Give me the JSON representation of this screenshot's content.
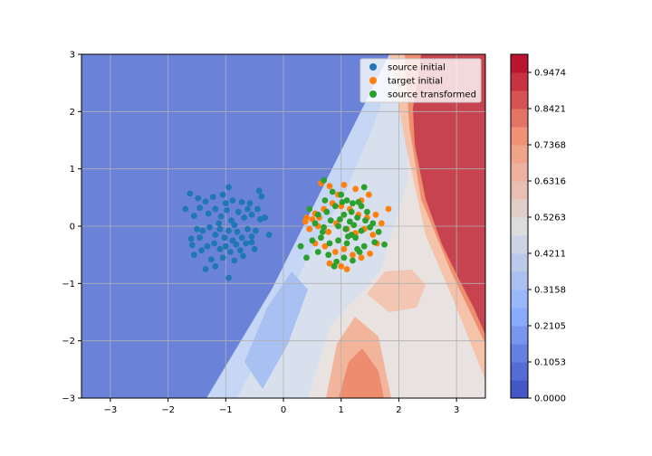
{
  "chart_data": {
    "type": "scatter",
    "title": "",
    "xlabel": "",
    "ylabel": "",
    "xlim": [
      -3.5,
      3.5
    ],
    "ylim": [
      -3,
      3
    ],
    "x_ticks": [
      "−3",
      "−2",
      "−1",
      "0",
      "1",
      "2",
      "3"
    ],
    "x_tick_values": [
      -3,
      -2,
      -1,
      0,
      1,
      2,
      3
    ],
    "y_ticks": [
      "−3",
      "−2",
      "−1",
      "0",
      "1",
      "2",
      "3"
    ],
    "y_tick_values": [
      -3,
      -2,
      -1,
      0,
      1,
      2,
      3
    ],
    "grid": true,
    "legend_position": "upper right",
    "background": "filled contour of classifier probability (coolwarm colormap), low values on the left half, high values in the upper-right region",
    "colorbar": {
      "labels": [
        "0.0000",
        "0.1053",
        "0.2105",
        "0.3158",
        "0.4211",
        "0.5263",
        "0.6316",
        "0.7368",
        "0.8421",
        "0.9474"
      ],
      "values": [
        0.0,
        0.1053,
        0.2105,
        0.3158,
        0.4211,
        0.5263,
        0.6316,
        0.7368,
        0.8421,
        0.9474
      ],
      "min": 0,
      "max": 1,
      "levels": 19,
      "colormap": "coolwarm"
    },
    "series": [
      {
        "name": "source initial",
        "color": "#1f77b4",
        "points": [
          [
            -1.62,
            0.57
          ],
          [
            -1.48,
            0.49
          ],
          [
            -1.35,
            0.43
          ],
          [
            -1.22,
            0.51
          ],
          [
            -1.05,
            0.55
          ],
          [
            -0.95,
            0.68
          ],
          [
            -0.88,
            0.45
          ],
          [
            -0.72,
            0.42
          ],
          [
            -0.58,
            0.4
          ],
          [
            -0.42,
            0.62
          ],
          [
            -0.38,
            0.52
          ],
          [
            -1.7,
            0.3
          ],
          [
            -1.55,
            0.18
          ],
          [
            -1.45,
            0.32
          ],
          [
            -1.3,
            0.22
          ],
          [
            -1.18,
            0.3
          ],
          [
            -1.08,
            0.17
          ],
          [
            -0.98,
            0.28
          ],
          [
            -0.9,
            0.1
          ],
          [
            -0.78,
            0.25
          ],
          [
            -0.68,
            0.15
          ],
          [
            -0.55,
            0.2
          ],
          [
            -0.4,
            0.12
          ],
          [
            -0.32,
            0.15
          ],
          [
            -1.6,
            -0.22
          ],
          [
            -1.5,
            -0.05
          ],
          [
            -1.4,
            -0.08
          ],
          [
            -1.28,
            -0.02
          ],
          [
            -1.18,
            -0.15
          ],
          [
            -1.1,
            -0.05
          ],
          [
            -1.02,
            -0.2
          ],
          [
            -0.95,
            -0.08
          ],
          [
            -0.88,
            -0.25
          ],
          [
            -0.8,
            -0.1
          ],
          [
            -0.72,
            -0.2
          ],
          [
            -0.62,
            -0.05
          ],
          [
            -0.55,
            -0.18
          ],
          [
            -0.48,
            -0.08
          ],
          [
            -0.25,
            -0.15
          ],
          [
            -1.55,
            -0.5
          ],
          [
            -1.42,
            -0.42
          ],
          [
            -1.32,
            -0.35
          ],
          [
            -1.2,
            -0.3
          ],
          [
            -1.1,
            -0.4
          ],
          [
            -1.0,
            -0.35
          ],
          [
            -0.92,
            -0.45
          ],
          [
            -0.82,
            -0.32
          ],
          [
            -0.75,
            -0.42
          ],
          [
            -0.65,
            -0.3
          ],
          [
            -0.55,
            -0.28
          ],
          [
            -1.35,
            -0.75
          ],
          [
            -1.18,
            -0.7
          ],
          [
            -1.05,
            -0.55
          ],
          [
            -0.95,
            -0.9
          ],
          [
            -0.85,
            -0.6
          ],
          [
            -0.7,
            -0.52
          ],
          [
            -1.25,
            -0.58
          ],
          [
            -1.45,
            -0.2
          ],
          [
            -0.5,
            -0.4
          ],
          [
            -0.62,
            0.3
          ],
          [
            -1.12,
            0.05
          ],
          [
            -0.85,
            0.02
          ],
          [
            -1.0,
            0.4
          ],
          [
            -1.58,
            -0.33
          ],
          [
            -0.45,
            0.3
          ]
        ]
      },
      {
        "name": "target initial",
        "color": "#ff7f0e",
        "points": [
          [
            0.65,
            0.75
          ],
          [
            0.8,
            0.7
          ],
          [
            1.05,
            0.72
          ],
          [
            1.25,
            0.65
          ],
          [
            0.4,
            0.15
          ],
          [
            0.55,
            0.22
          ],
          [
            0.7,
            0.3
          ],
          [
            0.85,
            0.4
          ],
          [
            1.0,
            0.35
          ],
          [
            1.15,
            0.3
          ],
          [
            1.3,
            0.2
          ],
          [
            1.45,
            0.15
          ],
          [
            1.6,
            0.2
          ],
          [
            1.82,
            0.3
          ],
          [
            0.45,
            -0.05
          ],
          [
            0.6,
            0.0
          ],
          [
            0.78,
            -0.1
          ],
          [
            0.92,
            0.05
          ],
          [
            1.1,
            -0.05
          ],
          [
            1.25,
            -0.12
          ],
          [
            1.4,
            -0.05
          ],
          [
            1.55,
            -0.15
          ],
          [
            0.55,
            -0.3
          ],
          [
            0.72,
            -0.35
          ],
          [
            0.9,
            -0.45
          ],
          [
            1.05,
            -0.4
          ],
          [
            1.2,
            -0.5
          ],
          [
            1.35,
            -0.55
          ],
          [
            1.5,
            -0.48
          ],
          [
            0.8,
            -0.65
          ],
          [
            1.0,
            -0.7
          ],
          [
            1.1,
            -0.75
          ],
          [
            0.95,
            0.55
          ],
          [
            1.35,
            0.45
          ],
          [
            1.7,
            0.05
          ],
          [
            0.62,
            0.15
          ],
          [
            1.48,
            0.55
          ],
          [
            0.38,
            0.08
          ],
          [
            1.62,
            -0.3
          ],
          [
            0.5,
            0.12
          ]
        ]
      },
      {
        "name": "source transformed",
        "color": "#2ca02c",
        "points": [
          [
            0.7,
            0.8
          ],
          [
            0.85,
            0.6
          ],
          [
            1.0,
            0.55
          ],
          [
            1.1,
            0.45
          ],
          [
            1.2,
            0.4
          ],
          [
            1.3,
            0.42
          ],
          [
            1.4,
            0.68
          ],
          [
            1.35,
            0.35
          ],
          [
            0.45,
            0.3
          ],
          [
            0.6,
            0.2
          ],
          [
            0.75,
            0.25
          ],
          [
            0.9,
            0.35
          ],
          [
            1.05,
            0.2
          ],
          [
            1.18,
            0.25
          ],
          [
            1.28,
            0.15
          ],
          [
            1.42,
            0.1
          ],
          [
            1.55,
            0.05
          ],
          [
            0.55,
            0.05
          ],
          [
            0.7,
            -0.02
          ],
          [
            0.82,
            0.1
          ],
          [
            0.95,
            0.0
          ],
          [
            1.08,
            -0.05
          ],
          [
            1.22,
            0.02
          ],
          [
            1.35,
            -0.08
          ],
          [
            1.5,
            -0.02
          ],
          [
            1.65,
            -0.1
          ],
          [
            0.3,
            -0.35
          ],
          [
            0.5,
            -0.25
          ],
          [
            0.65,
            -0.2
          ],
          [
            0.8,
            -0.3
          ],
          [
            0.95,
            -0.25
          ],
          [
            1.1,
            -0.3
          ],
          [
            1.25,
            -0.2
          ],
          [
            1.4,
            -0.35
          ],
          [
            0.4,
            -0.55
          ],
          [
            0.6,
            -0.45
          ],
          [
            0.78,
            -0.5
          ],
          [
            0.92,
            -0.62
          ],
          [
            1.05,
            -0.55
          ],
          [
            1.2,
            -0.6
          ],
          [
            1.32,
            -0.45
          ],
          [
            0.88,
            -0.7
          ],
          [
            1.18,
            -0.15
          ],
          [
            0.98,
            0.12
          ],
          [
            1.45,
            0.25
          ],
          [
            1.02,
            0.42
          ],
          [
            1.15,
            0.08
          ],
          [
            0.72,
            0.45
          ],
          [
            1.58,
            -0.28
          ],
          [
            1.75,
            -0.32
          ],
          [
            0.68,
            -0.1
          ],
          [
            1.28,
            -0.4
          ],
          [
            1.12,
            -0.18
          ]
        ]
      }
    ]
  }
}
